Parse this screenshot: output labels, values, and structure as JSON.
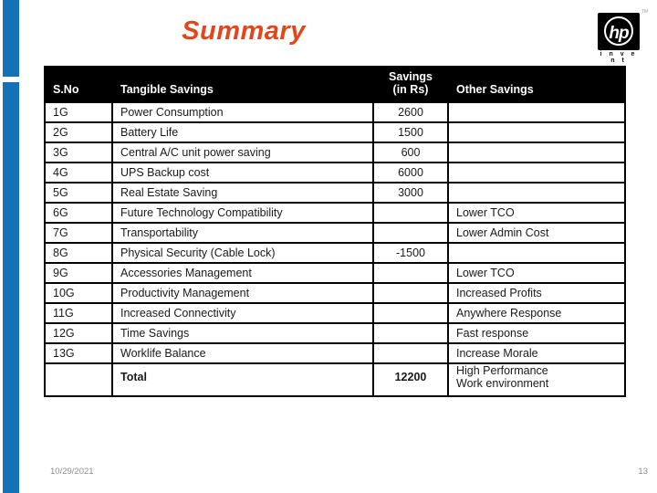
{
  "slide": {
    "title": "Summary",
    "footer_date": "10/29/2021",
    "page_number": "13"
  },
  "logo": {
    "hp_text": "hp",
    "invent_text": "i n v e n t",
    "tm_text": "TM"
  },
  "colors": {
    "accent_blue": "#1371B5",
    "title_orange": "#E0471C",
    "table_header_bg": "#000000",
    "footer_gray": "#8A8A8A"
  },
  "table": {
    "headers": [
      "S.No",
      "Tangible Savings",
      "Savings\n(in Rs)",
      "Other Savings"
    ],
    "rows": [
      {
        "sno": "1G",
        "tangible": "Power Consumption",
        "savings": "2600",
        "other": ""
      },
      {
        "sno": "2G",
        "tangible": "Battery Life",
        "savings": "1500",
        "other": ""
      },
      {
        "sno": "3G",
        "tangible": "Central A/C unit power saving",
        "savings": "600",
        "other": ""
      },
      {
        "sno": "4G",
        "tangible": "UPS Backup cost",
        "savings": "6000",
        "other": ""
      },
      {
        "sno": "5G",
        "tangible": "Real Estate Saving",
        "savings": "3000",
        "other": ""
      },
      {
        "sno": "6G",
        "tangible": "Future Technology Compatibility",
        "savings": "",
        "other": "Lower TCO"
      },
      {
        "sno": "7G",
        "tangible": "Transportability",
        "savings": "",
        "other": "Lower Admin Cost"
      },
      {
        "sno": "8G",
        "tangible": "Physical Security (Cable Lock)",
        "savings": "-1500",
        "other": ""
      },
      {
        "sno": "9G",
        "tangible": "Accessories Management",
        "savings": "",
        "other": "Lower TCO"
      },
      {
        "sno": "10G",
        "tangible": "Productivity Management",
        "savings": "",
        "other": "Increased Profits"
      },
      {
        "sno": "11G",
        "tangible": "Increased Connectivity",
        "savings": "",
        "other": "Anywhere Response"
      },
      {
        "sno": "12G",
        "tangible": "Time Savings",
        "savings": "",
        "other": "Fast response"
      },
      {
        "sno": "13G",
        "tangible": "Worklife Balance",
        "savings": "",
        "other": "Increase Morale"
      }
    ],
    "total_row": {
      "sno": "",
      "label": "Total",
      "savings": "12200",
      "other": "High Performance\nWork environment"
    }
  }
}
